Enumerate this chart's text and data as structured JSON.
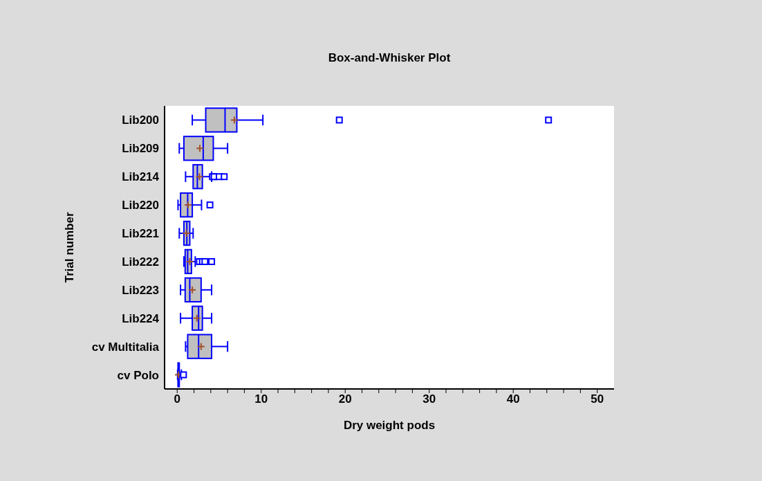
{
  "chart_data": {
    "type": "box",
    "title": "Box-and-Whisker Plot",
    "xlabel": "Dry weight pods",
    "ylabel": "Trial number",
    "orientation": "horizontal",
    "categories": [
      "Lib200",
      "Lib209",
      "Lib214",
      "Lib220",
      "Lib221",
      "Lib222",
      "Lib223",
      "Lib224",
      "cv Multitalia",
      "cv Polo"
    ],
    "color": "#0000ff",
    "boxes": [
      {
        "low": 1.8,
        "q1": 3.4,
        "median": 5.7,
        "q3": 7.1,
        "high": 10.2,
        "mean": 6.8,
        "outliers": [
          19.3,
          44.2
        ]
      },
      {
        "low": 0.25,
        "q1": 0.8,
        "median": 3.1,
        "q3": 4.3,
        "high": 6.0,
        "mean": 2.7
      },
      {
        "low": 1.0,
        "q1": 1.9,
        "median": 2.4,
        "q3": 3.0,
        "high": 4.1,
        "mean": 2.65,
        "outliers": [
          4.2,
          4.4,
          5.0,
          5.6
        ]
      },
      {
        "low": 0.1,
        "q1": 0.4,
        "median": 1.25,
        "q3": 1.8,
        "high": 2.9,
        "mean": 1.3,
        "outliers": [
          3.9
        ]
      },
      {
        "low": 0.25,
        "q1": 0.8,
        "median": 1.15,
        "q3": 1.5,
        "high": 1.9,
        "mean": 1.1
      },
      {
        "low": 0.8,
        "q1": 0.95,
        "median": 1.25,
        "q3": 1.7,
        "high": 2.15,
        "mean": 1.5,
        "outliers": [
          2.65,
          3.0,
          3.3,
          4.1
        ]
      },
      {
        "low": 0.4,
        "q1": 0.95,
        "median": 1.5,
        "q3": 2.85,
        "high": 4.1,
        "mean": 1.8
      },
      {
        "low": 0.4,
        "q1": 1.8,
        "median": 2.55,
        "q3": 3.0,
        "high": 4.1,
        "mean": 2.35
      },
      {
        "low": 1.0,
        "q1": 1.25,
        "median": 2.55,
        "q3": 4.1,
        "high": 6.0,
        "mean": 2.85
      },
      {
        "low": 0.05,
        "q1": 0.1,
        "median": 0.15,
        "q3": 0.25,
        "high": 0.5,
        "mean": 0.15,
        "outliers": [
          0.75
        ]
      }
    ],
    "xlim": [
      -1.5,
      52
    ],
    "xticks": [
      0,
      {
        "value": 2,
        "label": null
      },
      {
        "value": 4,
        "label": null
      },
      {
        "value": 6,
        "label": null
      },
      {
        "value": 8,
        "label": null
      },
      10,
      {
        "value": 12,
        "label": null
      },
      {
        "value": 14,
        "label": null
      },
      {
        "value": 16,
        "label": null
      },
      {
        "value": 18,
        "label": null
      },
      20,
      {
        "value": 22,
        "label": null
      },
      {
        "value": 24,
        "label": null
      },
      {
        "value": 26,
        "label": null
      },
      {
        "value": 28,
        "label": null
      },
      30,
      {
        "value": 32,
        "label": null
      },
      {
        "value": 34,
        "label": null
      },
      {
        "value": 36,
        "label": null
      },
      {
        "value": 38,
        "label": null
      },
      40,
      {
        "value": 42,
        "label": null
      },
      {
        "value": 44,
        "label": null
      },
      {
        "value": 46,
        "label": null
      },
      {
        "value": 48,
        "label": null
      },
      50
    ]
  }
}
